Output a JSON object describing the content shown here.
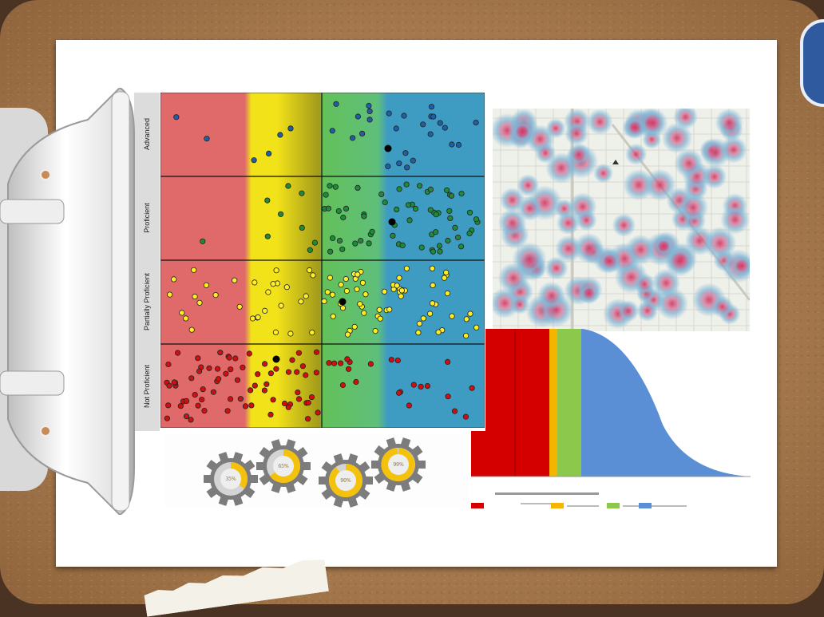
{
  "scatter": {
    "rows": [
      "Advanced",
      "Proficient",
      "Partially Proficient",
      "Not Proficient"
    ],
    "bands": [
      {
        "name": "red",
        "color": "#e06a6a"
      },
      {
        "name": "yellow",
        "color": "#f2e21a"
      },
      {
        "name": "green",
        "color": "#63c05a"
      },
      {
        "name": "blue",
        "color": "#3e9bc2"
      }
    ],
    "point_colors": {
      "Advanced": "#1f5fa8",
      "Proficient": "#1f8a3a",
      "Partially Proficient": "#ffee22",
      "Not Proficient": "#d01010",
      "mean": "#000000"
    }
  },
  "gears": {
    "labels": [
      "35%",
      "65%",
      "90%",
      "99%"
    ],
    "fill_fractions": [
      0.35,
      0.65,
      0.9,
      0.99
    ]
  },
  "distribution": {
    "band_colors": [
      "#d40000",
      "#f5b400",
      "#8cc84b",
      "#5a8fd6"
    ]
  },
  "icons": {
    "clip": "binder-clip-icon",
    "gear": "gear-icon"
  }
}
